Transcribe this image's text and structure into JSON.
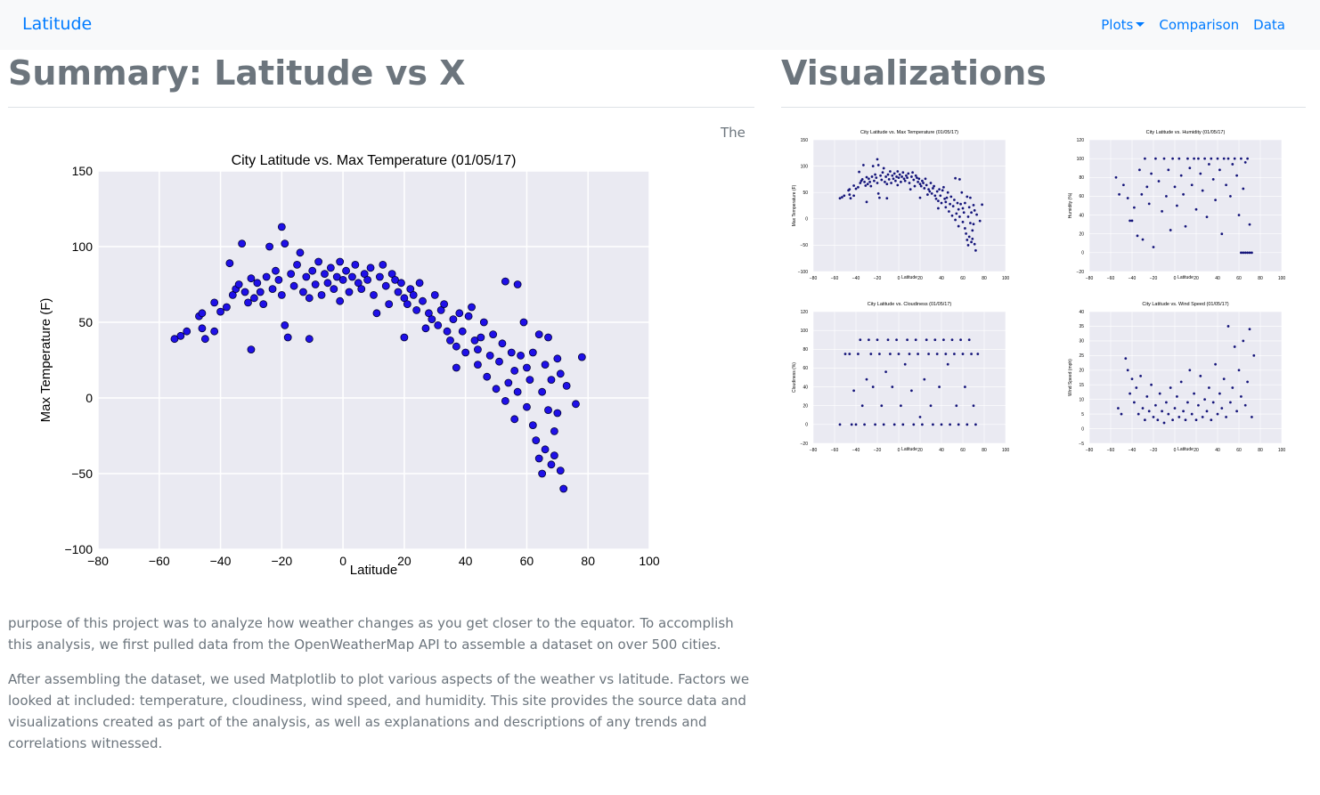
{
  "nav": {
    "brand": "Latitude",
    "plots_label": "Plots",
    "comparison_label": "Comparison",
    "data_label": "Data"
  },
  "summary": {
    "heading": "Summary: Latitude vs X",
    "lead_word": "The",
    "paragraph1": "purpose of this project was to analyze how weather changes as you get closer to the equator. To accomplish this analysis, we first pulled data from the OpenWeatherMap API to assemble a dataset on over 500 cities.",
    "paragraph2": "After assembling the dataset, we used Matplotlib to plot various aspects of the weather vs latitude. Factors we looked at included: temperature, cloudiness, wind speed, and humidity. This site provides the source data and visualizations created as part of the analysis, as well as explanations and descriptions of any trends and correlations witnessed."
  },
  "visualizations": {
    "heading": "Visualizations"
  },
  "colors": {
    "brand_link": "#007bff",
    "text_muted": "#6c757d",
    "plot_bg": "#eaeaf2",
    "point_main": "#1f10e8",
    "point_thumb": "#14147a"
  },
  "chart_data": [
    {
      "id": "temp",
      "type": "scatter",
      "title": "City Latitude vs. Max Temperature (01/05/17)",
      "xlabel": "Latitude",
      "ylabel": "Max Temperature (F)",
      "xlim": [
        -80,
        100
      ],
      "ylim": [
        -100,
        150
      ],
      "xticks": [
        -80,
        -60,
        -40,
        -20,
        0,
        20,
        40,
        60,
        80,
        100
      ],
      "yticks": [
        -100,
        -50,
        0,
        50,
        100,
        150
      ],
      "grid": true,
      "points": [
        [
          -55,
          39
        ],
        [
          -53,
          41
        ],
        [
          -51,
          44
        ],
        [
          -47,
          54
        ],
        [
          -46,
          56
        ],
        [
          -46,
          46
        ],
        [
          -45,
          39
        ],
        [
          -42,
          63
        ],
        [
          -42,
          44
        ],
        [
          -40,
          57
        ],
        [
          -38,
          60
        ],
        [
          -37,
          89
        ],
        [
          -36,
          68
        ],
        [
          -35,
          72
        ],
        [
          -34,
          75
        ],
        [
          -33,
          102
        ],
        [
          -32,
          70
        ],
        [
          -31,
          63
        ],
        [
          -30,
          79
        ],
        [
          -30,
          32
        ],
        [
          -29,
          66
        ],
        [
          -28,
          76
        ],
        [
          -27,
          70
        ],
        [
          -26,
          62
        ],
        [
          -25,
          80
        ],
        [
          -24,
          100
        ],
        [
          -23,
          72
        ],
        [
          -22,
          84
        ],
        [
          -21,
          78
        ],
        [
          -20,
          113
        ],
        [
          -20,
          68
        ],
        [
          -19,
          102
        ],
        [
          -19,
          48
        ],
        [
          -18,
          40
        ],
        [
          -17,
          82
        ],
        [
          -16,
          74
        ],
        [
          -15,
          88
        ],
        [
          -14,
          96
        ],
        [
          -13,
          70
        ],
        [
          -12,
          80
        ],
        [
          -11,
          66
        ],
        [
          -11,
          39
        ],
        [
          -10,
          84
        ],
        [
          -9,
          75
        ],
        [
          -8,
          90
        ],
        [
          -7,
          68
        ],
        [
          -6,
          82
        ],
        [
          -5,
          76
        ],
        [
          -4,
          86
        ],
        [
          -3,
          72
        ],
        [
          -2,
          80
        ],
        [
          -1,
          64
        ],
        [
          -1,
          90
        ],
        [
          0,
          78
        ],
        [
          1,
          84
        ],
        [
          2,
          70
        ],
        [
          3,
          80
        ],
        [
          4,
          88
        ],
        [
          5,
          76
        ],
        [
          6,
          72
        ],
        [
          7,
          82
        ],
        [
          8,
          78
        ],
        [
          9,
          86
        ],
        [
          10,
          68
        ],
        [
          11,
          56
        ],
        [
          12,
          80
        ],
        [
          13,
          88
        ],
        [
          14,
          74
        ],
        [
          15,
          62
        ],
        [
          16,
          82
        ],
        [
          17,
          78
        ],
        [
          18,
          70
        ],
        [
          19,
          76
        ],
        [
          20,
          40
        ],
        [
          20,
          66
        ],
        [
          21,
          62
        ],
        [
          22,
          72
        ],
        [
          23,
          68
        ],
        [
          24,
          58
        ],
        [
          25,
          76
        ],
        [
          26,
          64
        ],
        [
          27,
          46
        ],
        [
          28,
          56
        ],
        [
          29,
          52
        ],
        [
          30,
          68
        ],
        [
          31,
          48
        ],
        [
          32,
          58
        ],
        [
          33,
          62
        ],
        [
          34,
          44
        ],
        [
          35,
          38
        ],
        [
          36,
          52
        ],
        [
          37,
          20
        ],
        [
          37,
          34
        ],
        [
          38,
          56
        ],
        [
          39,
          44
        ],
        [
          40,
          30
        ],
        [
          41,
          54
        ],
        [
          42,
          60
        ],
        [
          43,
          38
        ],
        [
          44,
          22
        ],
        [
          44,
          32
        ],
        [
          45,
          40
        ],
        [
          46,
          50
        ],
        [
          47,
          14
        ],
        [
          48,
          28
        ],
        [
          49,
          42
        ],
        [
          50,
          6
        ],
        [
          51,
          24
        ],
        [
          52,
          36
        ],
        [
          53,
          -2
        ],
        [
          53,
          77
        ],
        [
          54,
          10
        ],
        [
          55,
          30
        ],
        [
          56,
          -14
        ],
        [
          56,
          18
        ],
        [
          57,
          4
        ],
        [
          57,
          75
        ],
        [
          58,
          28
        ],
        [
          59,
          50
        ],
        [
          60,
          -6
        ],
        [
          60,
          20
        ],
        [
          61,
          12
        ],
        [
          62,
          -18
        ],
        [
          62,
          30
        ],
        [
          63,
          -28
        ],
        [
          64,
          -40
        ],
        [
          64,
          42
        ],
        [
          65,
          4
        ],
        [
          65,
          -50
        ],
        [
          66,
          22
        ],
        [
          66,
          -34
        ],
        [
          67,
          -8
        ],
        [
          67,
          40
        ],
        [
          68,
          -44
        ],
        [
          68,
          12
        ],
        [
          69,
          -22
        ],
        [
          69,
          -38
        ],
        [
          70,
          26
        ],
        [
          70,
          -10
        ],
        [
          71,
          -48
        ],
        [
          71,
          16
        ],
        [
          72,
          -60
        ],
        [
          73,
          8
        ],
        [
          76,
          -4
        ],
        [
          78,
          27
        ]
      ]
    },
    {
      "id": "humidity",
      "type": "scatter",
      "title": "City Latitude vs. Humidity (01/05/17)",
      "xlabel": "Latitude",
      "ylabel": "Humidity (%)",
      "xlim": [
        -80,
        100
      ],
      "ylim": [
        -20,
        120
      ],
      "xticks": [
        -80,
        -60,
        -40,
        -20,
        0,
        20,
        40,
        60,
        80,
        100
      ],
      "yticks": [
        -20,
        0,
        20,
        40,
        60,
        80,
        100,
        120
      ],
      "grid": true,
      "points": [
        [
          -55,
          80
        ],
        [
          -52,
          62
        ],
        [
          -48,
          72
        ],
        [
          -44,
          58
        ],
        [
          -42,
          34
        ],
        [
          -40,
          34
        ],
        [
          -38,
          48
        ],
        [
          -35,
          18
        ],
        [
          -33,
          88
        ],
        [
          -31,
          62
        ],
        [
          -30,
          14
        ],
        [
          -28,
          100
        ],
        [
          -26,
          70
        ],
        [
          -24,
          52
        ],
        [
          -22,
          84
        ],
        [
          -20,
          6
        ],
        [
          -18,
          100
        ],
        [
          -15,
          76
        ],
        [
          -12,
          44
        ],
        [
          -10,
          100
        ],
        [
          -8,
          60
        ],
        [
          -6,
          88
        ],
        [
          -4,
          24
        ],
        [
          -2,
          100
        ],
        [
          0,
          70
        ],
        [
          2,
          50
        ],
        [
          4,
          100
        ],
        [
          6,
          82
        ],
        [
          8,
          62
        ],
        [
          10,
          28
        ],
        [
          12,
          100
        ],
        [
          14,
          90
        ],
        [
          16,
          72
        ],
        [
          18,
          100
        ],
        [
          20,
          46
        ],
        [
          22,
          100
        ],
        [
          24,
          84
        ],
        [
          26,
          66
        ],
        [
          28,
          100
        ],
        [
          30,
          38
        ],
        [
          32,
          94
        ],
        [
          34,
          100
        ],
        [
          36,
          78
        ],
        [
          38,
          56
        ],
        [
          40,
          100
        ],
        [
          42,
          88
        ],
        [
          44,
          20
        ],
        [
          46,
          100
        ],
        [
          48,
          72
        ],
        [
          50,
          100
        ],
        [
          52,
          60
        ],
        [
          54,
          94
        ],
        [
          56,
          100
        ],
        [
          58,
          82
        ],
        [
          60,
          40
        ],
        [
          62,
          100
        ],
        [
          64,
          68
        ],
        [
          66,
          96
        ],
        [
          68,
          100
        ],
        [
          70,
          30
        ],
        [
          62,
          0
        ],
        [
          64,
          0
        ],
        [
          66,
          0
        ],
        [
          68,
          0
        ],
        [
          70,
          0
        ],
        [
          72,
          0
        ]
      ]
    },
    {
      "id": "cloudiness",
      "type": "scatter",
      "title": "City Latitude vs. Cloudiness (01/05/17)",
      "xlabel": "Latitude",
      "ylabel": "Cloudiness (%)",
      "xlim": [
        -80,
        100
      ],
      "ylim": [
        -20,
        120
      ],
      "xticks": [
        -80,
        -60,
        -40,
        -20,
        0,
        20,
        40,
        60,
        80,
        100
      ],
      "yticks": [
        -20,
        0,
        20,
        40,
        60,
        80,
        100,
        120
      ],
      "grid": true,
      "points": [
        [
          -55,
          0
        ],
        [
          -50,
          75
        ],
        [
          -46,
          75
        ],
        [
          -44,
          0
        ],
        [
          -42,
          36
        ],
        [
          -40,
          0
        ],
        [
          -38,
          75
        ],
        [
          -36,
          90
        ],
        [
          -34,
          20
        ],
        [
          -32,
          0
        ],
        [
          -30,
          48
        ],
        [
          -28,
          90
        ],
        [
          -26,
          75
        ],
        [
          -24,
          40
        ],
        [
          -22,
          0
        ],
        [
          -20,
          90
        ],
        [
          -18,
          75
        ],
        [
          -16,
          20
        ],
        [
          -14,
          0
        ],
        [
          -12,
          56
        ],
        [
          -10,
          90
        ],
        [
          -8,
          75
        ],
        [
          -6,
          40
        ],
        [
          -4,
          0
        ],
        [
          -2,
          90
        ],
        [
          0,
          75
        ],
        [
          2,
          20
        ],
        [
          4,
          0
        ],
        [
          6,
          64
        ],
        [
          8,
          90
        ],
        [
          10,
          75
        ],
        [
          12,
          36
        ],
        [
          14,
          0
        ],
        [
          16,
          90
        ],
        [
          18,
          75
        ],
        [
          20,
          8
        ],
        [
          22,
          0
        ],
        [
          24,
          48
        ],
        [
          26,
          90
        ],
        [
          28,
          75
        ],
        [
          30,
          20
        ],
        [
          32,
          0
        ],
        [
          34,
          90
        ],
        [
          36,
          75
        ],
        [
          38,
          40
        ],
        [
          40,
          0
        ],
        [
          42,
          90
        ],
        [
          44,
          75
        ],
        [
          46,
          64
        ],
        [
          48,
          0
        ],
        [
          50,
          90
        ],
        [
          52,
          75
        ],
        [
          54,
          20
        ],
        [
          56,
          0
        ],
        [
          58,
          90
        ],
        [
          60,
          75
        ],
        [
          62,
          40
        ],
        [
          64,
          0
        ],
        [
          66,
          90
        ],
        [
          68,
          75
        ],
        [
          70,
          20
        ],
        [
          72,
          0
        ],
        [
          74,
          75
        ]
      ]
    },
    {
      "id": "wind",
      "type": "scatter",
      "title": "City Latitude vs. Wind Speed (01/05/17)",
      "xlabel": "Latitude",
      "ylabel": "Wind Speed (mph)",
      "xlim": [
        -80,
        100
      ],
      "ylim": [
        -5,
        40
      ],
      "xticks": [
        -80,
        -60,
        -40,
        -20,
        0,
        20,
        40,
        60,
        80,
        100
      ],
      "yticks": [
        -5,
        0,
        5,
        10,
        15,
        20,
        25,
        30,
        35,
        40
      ],
      "grid": true,
      "points": [
        [
          -53,
          7
        ],
        [
          -50,
          5
        ],
        [
          -46,
          24
        ],
        [
          -44,
          20
        ],
        [
          -42,
          12
        ],
        [
          -40,
          17
        ],
        [
          -38,
          9
        ],
        [
          -36,
          14
        ],
        [
          -34,
          5
        ],
        [
          -32,
          18
        ],
        [
          -30,
          7
        ],
        [
          -28,
          3
        ],
        [
          -26,
          11
        ],
        [
          -24,
          6
        ],
        [
          -22,
          15
        ],
        [
          -20,
          4
        ],
        [
          -18,
          8
        ],
        [
          -16,
          3
        ],
        [
          -14,
          12
        ],
        [
          -12,
          6
        ],
        [
          -10,
          2
        ],
        [
          -8,
          9
        ],
        [
          -6,
          5
        ],
        [
          -4,
          14
        ],
        [
          -2,
          3
        ],
        [
          0,
          7
        ],
        [
          2,
          11
        ],
        [
          4,
          4
        ],
        [
          6,
          16
        ],
        [
          8,
          6
        ],
        [
          10,
          3
        ],
        [
          12,
          9
        ],
        [
          14,
          20
        ],
        [
          16,
          5
        ],
        [
          18,
          12
        ],
        [
          20,
          3
        ],
        [
          22,
          8
        ],
        [
          24,
          18
        ],
        [
          26,
          4
        ],
        [
          28,
          10
        ],
        [
          30,
          6
        ],
        [
          32,
          14
        ],
        [
          34,
          3
        ],
        [
          36,
          9
        ],
        [
          38,
          22
        ],
        [
          40,
          5
        ],
        [
          42,
          12
        ],
        [
          44,
          7
        ],
        [
          46,
          17
        ],
        [
          48,
          4
        ],
        [
          50,
          35
        ],
        [
          52,
          9
        ],
        [
          54,
          14
        ],
        [
          56,
          28
        ],
        [
          58,
          6
        ],
        [
          60,
          20
        ],
        [
          62,
          11
        ],
        [
          64,
          30
        ],
        [
          66,
          8
        ],
        [
          68,
          16
        ],
        [
          70,
          34
        ],
        [
          72,
          4
        ],
        [
          74,
          25
        ]
      ]
    }
  ]
}
